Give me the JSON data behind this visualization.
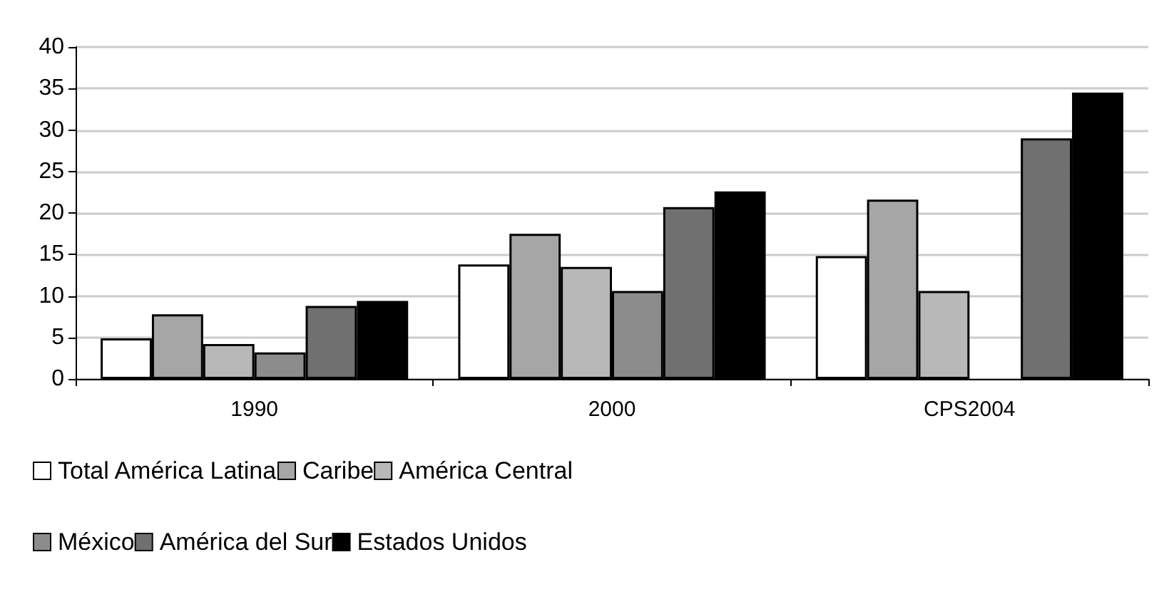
{
  "chart_data": {
    "type": "bar",
    "categories": [
      "1990",
      "2000",
      "CPS2004"
    ],
    "series": [
      {
        "name": "Total América Latina",
        "color": "#ffffff",
        "values": [
          4.9,
          13.8,
          14.8
        ]
      },
      {
        "name": "Caribe",
        "color": "#a6a6a6",
        "values": [
          7.8,
          17.5,
          21.6
        ]
      },
      {
        "name": "América Central",
        "color": "#b8b8b8",
        "values": [
          4.2,
          13.5,
          10.6
        ]
      },
      {
        "name": "México",
        "color": "#8c8c8c",
        "values": [
          3.2,
          10.6,
          null
        ]
      },
      {
        "name": "América del Sur",
        "color": "#707070",
        "values": [
          8.8,
          20.7,
          29.0
        ]
      },
      {
        "name": "Estados Unidos",
        "color": "#000000",
        "values": [
          9.4,
          22.6,
          34.5
        ]
      }
    ],
    "ylim": [
      0,
      40
    ],
    "yticks": [
      0,
      5,
      10,
      15,
      20,
      25,
      30,
      35,
      40
    ],
    "grid": "y",
    "legend": "bottom"
  }
}
